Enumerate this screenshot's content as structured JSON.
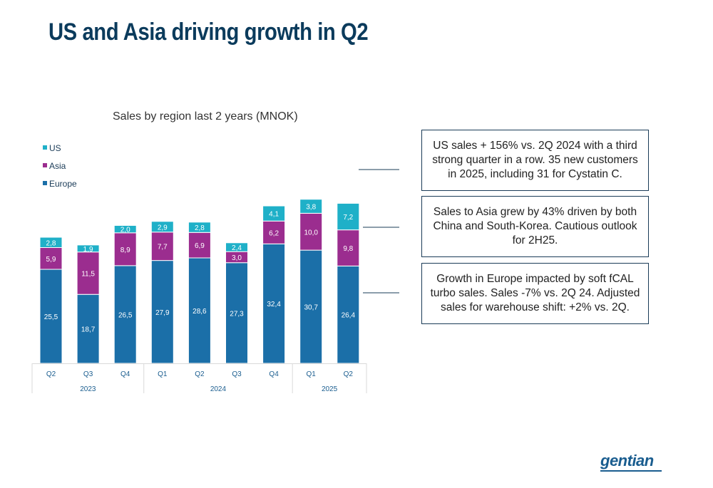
{
  "slide": {
    "title": "US and Asia driving growth in Q2",
    "logo": "gentian"
  },
  "callouts": {
    "us": "US sales + 156% vs. 2Q 2024 with a third strong quarter in a row. 35 new customers in 2025, including 31 for Cystatin C.",
    "asia": "Sales to Asia grew by 43% driven by both China and South-Korea. Cautious outlook for 2H25.",
    "europe": "Growth in Europe impacted by soft fCAL turbo sales. Sales -7% vs. 2Q 24. Adjusted sales for warehouse shift: +2% vs. 2Q."
  },
  "chart_data": {
    "type": "bar",
    "stacked": true,
    "title": "Sales by region last 2 years (MNOK)",
    "categories": [
      "Q2",
      "Q3",
      "Q4",
      "Q1",
      "Q2",
      "Q3",
      "Q4",
      "Q1",
      "Q2"
    ],
    "years": [
      {
        "label": "2023",
        "span": 3
      },
      {
        "label": "2024",
        "span": 4
      },
      {
        "label": "2025",
        "span": 2
      }
    ],
    "series": [
      {
        "name": "Europe",
        "color": "#1b6fa8",
        "values": [
          25.5,
          18.7,
          26.5,
          27.9,
          28.6,
          27.3,
          32.4,
          30.7,
          26.4
        ],
        "labels": [
          "25,5",
          "18,7",
          "26,5",
          "27,9",
          "28,6",
          "27,3",
          "32,4",
          "30,7",
          "26,4"
        ]
      },
      {
        "name": "Asia",
        "color": "#9b2d8f",
        "values": [
          5.9,
          11.5,
          8.9,
          7.7,
          6.9,
          3.0,
          6.2,
          10.0,
          9.8
        ],
        "labels": [
          "5,9",
          "11,5",
          "8,9",
          "7,7",
          "6,9",
          "3,0",
          "6,2",
          "10,0",
          "9,8"
        ]
      },
      {
        "name": "US",
        "color": "#1fb0c8",
        "values": [
          2.8,
          1.9,
          2.0,
          2.9,
          2.8,
          2.4,
          4.1,
          3.8,
          7.2
        ],
        "labels": [
          "2,8",
          "1,9",
          "2,0",
          "2,9",
          "2,8",
          "2,4",
          "4,1",
          "3,8",
          "7,2"
        ]
      }
    ],
    "legend": {
      "position": "top-left",
      "order": [
        "US",
        "Asia",
        "Europe"
      ]
    },
    "grid": false
  }
}
